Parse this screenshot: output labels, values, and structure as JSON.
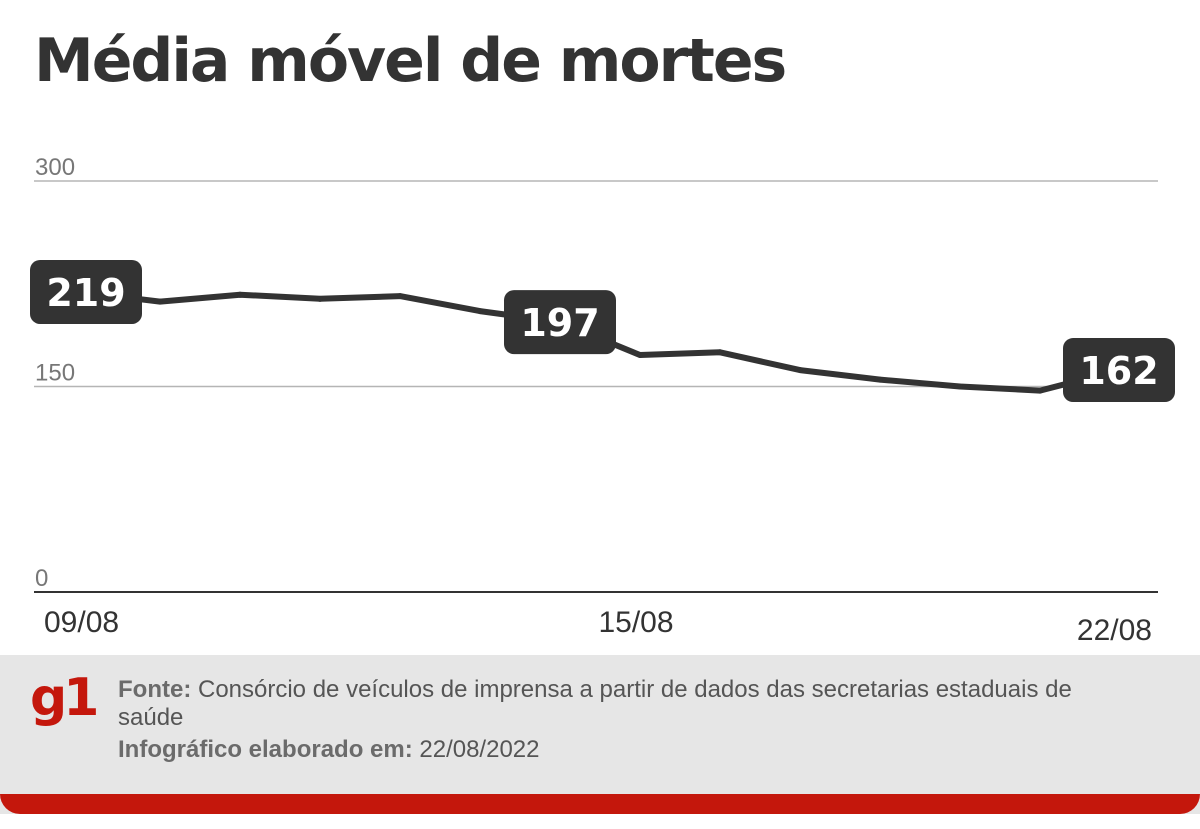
{
  "title": "Média móvel de mortes",
  "chart_data": {
    "type": "line",
    "title": "Média móvel de mortes",
    "x": [
      "09/08",
      "10/08",
      "11/08",
      "12/08",
      "13/08",
      "14/08",
      "15/08",
      "16/08",
      "17/08",
      "18/08",
      "19/08",
      "20/08",
      "21/08",
      "22/08"
    ],
    "series": [
      {
        "values": [
          219,
          212,
          217,
          214,
          216,
          205,
          197,
          173,
          175,
          162,
          155,
          150,
          147,
          162
        ]
      }
    ],
    "ylim": [
      0,
      300
    ],
    "yticks": [
      "0",
      "150",
      "300"
    ],
    "xtick_labels": [
      "09/08",
      "15/08",
      "22/08"
    ],
    "data_labels": [
      {
        "index": 0,
        "text": "219"
      },
      {
        "index": 6,
        "text": "197"
      },
      {
        "index": 13,
        "text": "162"
      }
    ],
    "grid": true,
    "line_color": "#333333",
    "label_bg": "#333333"
  },
  "footer": {
    "logo": "g1",
    "source_label": "Fonte:",
    "source_text": "Consórcio de veículos de imprensa a partir de dados das secretarias estaduais de saúde",
    "credit_label": "Infográfico elaborado em:",
    "credit_date": "22/08/2022",
    "accent_color": "#c4170c"
  }
}
